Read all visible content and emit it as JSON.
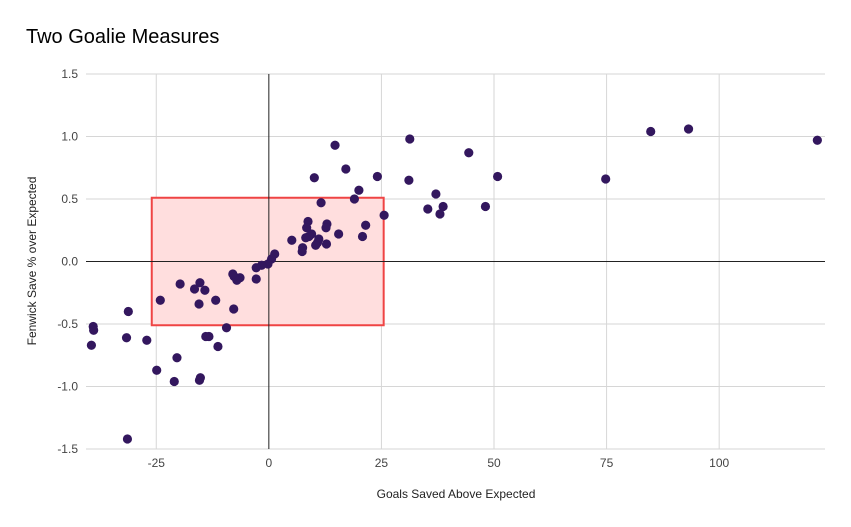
{
  "chart_data": {
    "type": "scatter",
    "title": "Two Goalie Measures",
    "xlabel": "Goals Saved Above Expected",
    "ylabel": "Fenwick Save % over Expected",
    "xlim": [
      -40.6,
      123.5
    ],
    "ylim": [
      -1.5,
      1.5
    ],
    "x_ticks": [
      -25,
      0,
      25,
      50,
      75,
      100
    ],
    "y_ticks": [
      -1.5,
      -1.0,
      -0.5,
      0.0,
      0.5,
      1.0,
      1.5
    ],
    "y_tick_labels": [
      "-1.5",
      "-1.0",
      "-0.5",
      "0.0",
      "0.5",
      "1.0",
      "1.5"
    ],
    "x_tick_labels": [
      "-25",
      "0",
      "25",
      "50",
      "75",
      "100"
    ],
    "grid": true,
    "point_color": "#33175e",
    "highlight_box": {
      "x": [
        -26,
        25.5
      ],
      "y": [
        -0.51,
        0.51
      ],
      "fill": "#ffdede",
      "stroke": "#ef4444"
    },
    "points": [
      {
        "x": 121.8,
        "y": 0.97
      },
      {
        "x": 93.2,
        "y": 1.06
      },
      {
        "x": 84.8,
        "y": 1.04
      },
      {
        "x": 74.8,
        "y": 0.66
      },
      {
        "x": 50.8,
        "y": 0.68
      },
      {
        "x": 48.1,
        "y": 0.44
      },
      {
        "x": 44.4,
        "y": 0.87
      },
      {
        "x": 38.7,
        "y": 0.44
      },
      {
        "x": 38.0,
        "y": 0.38
      },
      {
        "x": 37.1,
        "y": 0.54
      },
      {
        "x": 35.3,
        "y": 0.42
      },
      {
        "x": 31.3,
        "y": 0.98
      },
      {
        "x": 31.1,
        "y": 0.65
      },
      {
        "x": 25.6,
        "y": 0.37
      },
      {
        "x": 24.1,
        "y": 0.68
      },
      {
        "x": 21.5,
        "y": 0.29
      },
      {
        "x": 20.8,
        "y": 0.2
      },
      {
        "x": 20.0,
        "y": 0.57
      },
      {
        "x": 19.0,
        "y": 0.5
      },
      {
        "x": 17.1,
        "y": 0.74
      },
      {
        "x": 15.5,
        "y": 0.22
      },
      {
        "x": 14.7,
        "y": 0.93
      },
      {
        "x": 12.9,
        "y": 0.3
      },
      {
        "x": 12.7,
        "y": 0.27
      },
      {
        "x": 12.8,
        "y": 0.14
      },
      {
        "x": 11.6,
        "y": 0.47
      },
      {
        "x": 11.1,
        "y": 0.18
      },
      {
        "x": 10.8,
        "y": 0.15
      },
      {
        "x": 10.4,
        "y": 0.13
      },
      {
        "x": 10.1,
        "y": 0.67
      },
      {
        "x": 9.5,
        "y": 0.22
      },
      {
        "x": 8.9,
        "y": 0.2
      },
      {
        "x": 8.7,
        "y": 0.32
      },
      {
        "x": 8.4,
        "y": 0.27
      },
      {
        "x": 8.2,
        "y": 0.19
      },
      {
        "x": 7.5,
        "y": 0.11
      },
      {
        "x": 7.4,
        "y": 0.08
      },
      {
        "x": 5.1,
        "y": 0.17
      },
      {
        "x": 1.3,
        "y": 0.06
      },
      {
        "x": 0.6,
        "y": 0.02
      },
      {
        "x": -0.2,
        "y": -0.02
      },
      {
        "x": -1.6,
        "y": -0.03
      },
      {
        "x": -2.8,
        "y": -0.05
      },
      {
        "x": -2.8,
        "y": -0.14
      },
      {
        "x": -6.4,
        "y": -0.13
      },
      {
        "x": -7.1,
        "y": -0.15
      },
      {
        "x": -7.7,
        "y": -0.12
      },
      {
        "x": -8.0,
        "y": -0.1
      },
      {
        "x": -7.8,
        "y": -0.38
      },
      {
        "x": -9.4,
        "y": -0.53
      },
      {
        "x": -11.3,
        "y": -0.68
      },
      {
        "x": -11.8,
        "y": -0.31
      },
      {
        "x": -13.3,
        "y": -0.6
      },
      {
        "x": -14.0,
        "y": -0.6
      },
      {
        "x": -14.2,
        "y": -0.23
      },
      {
        "x": -15.3,
        "y": -0.17
      },
      {
        "x": -15.5,
        "y": -0.34
      },
      {
        "x": -15.2,
        "y": -0.93
      },
      {
        "x": -15.4,
        "y": -0.95
      },
      {
        "x": -16.5,
        "y": -0.22
      },
      {
        "x": -19.7,
        "y": -0.18
      },
      {
        "x": -20.4,
        "y": -0.77
      },
      {
        "x": -21.0,
        "y": -0.96
      },
      {
        "x": -24.1,
        "y": -0.31
      },
      {
        "x": -24.9,
        "y": -0.87
      },
      {
        "x": -27.1,
        "y": -0.63
      },
      {
        "x": -31.2,
        "y": -0.4
      },
      {
        "x": -31.6,
        "y": -0.61
      },
      {
        "x": -31.4,
        "y": -1.42
      },
      {
        "x": -39.0,
        "y": -0.52
      },
      {
        "x": -38.9,
        "y": -0.55
      },
      {
        "x": -39.4,
        "y": -0.67
      }
    ]
  }
}
